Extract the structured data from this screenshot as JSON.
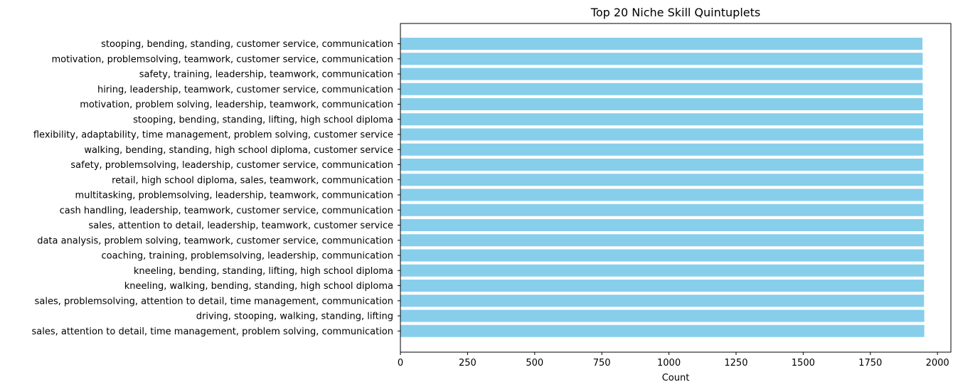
{
  "chart_data": {
    "type": "bar",
    "orientation": "horizontal",
    "title": "Top 20 Niche Skill Quintuplets",
    "xlabel": "Count",
    "ylabel": "",
    "xlim": [
      0,
      2050
    ],
    "xticks": [
      0,
      250,
      500,
      750,
      1000,
      1250,
      1500,
      1750,
      2000
    ],
    "grid": false,
    "legend": "none",
    "bar_color": "#87CEEB",
    "categories": [
      "stooping, bending, standing, customer service, communication",
      "motivation, problemsolving, teamwork, customer service, communication",
      "safety, training, leadership, teamwork, communication",
      "hiring, leadership, teamwork, customer service, communication",
      "motivation, problem solving, leadership, teamwork, communication",
      "stooping, bending, standing, lifting, high school diploma",
      "flexibility, adaptability, time management, problem solving, customer service",
      "walking, bending, standing, high school diploma, customer service",
      "safety, problemsolving, leadership, customer service, communication",
      "retail, high school diploma, sales, teamwork, communication",
      "multitasking, problemsolving, leadership, teamwork, communication",
      "cash handling, leadership, teamwork, customer service, communication",
      "sales, attention to detail, leadership, teamwork, customer service",
      "data analysis, problem solving, teamwork, customer service, communication",
      "coaching, training, problemsolving, leadership, communication",
      "kneeling, bending, standing, lifting, high school diploma",
      "kneeling, walking, bending, standing, high school diploma",
      "sales, problemsolving, attention to detail, time management, communication",
      "driving, stooping, walking, standing, lifting",
      "sales, attention to detail, time management, problem solving, communication"
    ],
    "values": [
      1944,
      1945,
      1945,
      1945,
      1946,
      1947,
      1947,
      1948,
      1948,
      1948,
      1948,
      1948,
      1949,
      1949,
      1950,
      1950,
      1950,
      1950,
      1951,
      1951
    ]
  }
}
